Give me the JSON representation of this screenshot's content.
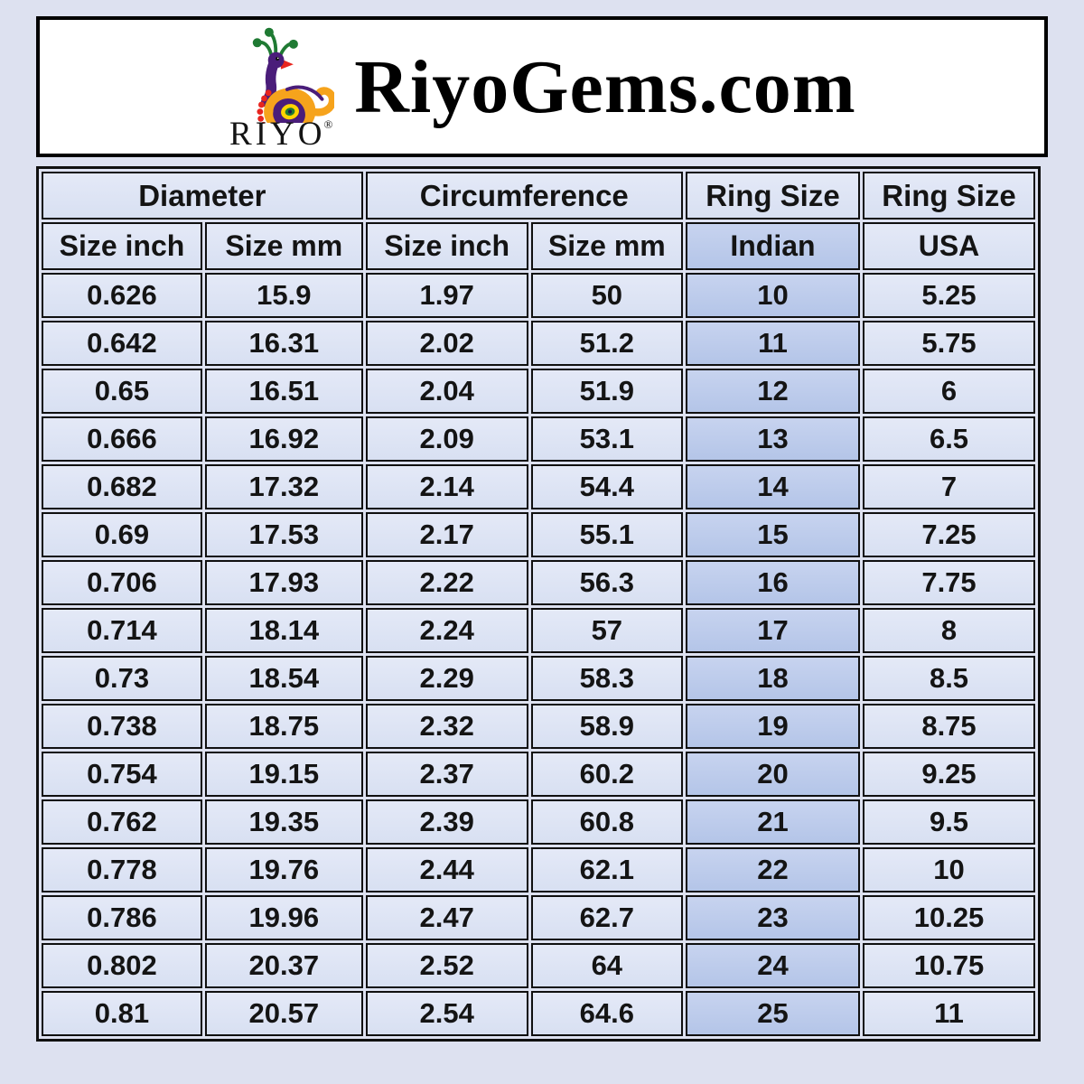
{
  "page": {
    "background": "#dde1f0"
  },
  "header": {
    "title": "RiyoGems.com",
    "logo": {
      "wordmark": "RIYO",
      "registered": "®",
      "icon": "peacock-paisley-logo",
      "brand_colors": {
        "purple": "#4a1d7a",
        "green": "#1f7a33",
        "orange": "#f6a31c",
        "yellow": "#ffd400",
        "red": "#e8251f"
      }
    }
  },
  "colors": {
    "page_bg": "#dde1f0",
    "cell_bg": "#dce3f3",
    "indian_column_bg": "#b9c8e8",
    "border": "#101010",
    "header_box_bg": "#ffffff",
    "text": "#141414"
  },
  "chart_data": {
    "type": "table",
    "highlight_column_index": 4,
    "column_groups": [
      {
        "label": "Diameter",
        "colspan": 2
      },
      {
        "label": "Circumference",
        "colspan": 2
      },
      {
        "label": "Ring Size",
        "colspan": 1
      },
      {
        "label": "Ring Size",
        "colspan": 1
      }
    ],
    "columns": [
      "Size inch",
      "Size mm",
      "Size inch",
      "Size mm",
      "Indian",
      "USA"
    ],
    "rows": [
      [
        "0.626",
        "15.9",
        "1.97",
        "50",
        "10",
        "5.25"
      ],
      [
        "0.642",
        "16.31",
        "2.02",
        "51.2",
        "11",
        "5.75"
      ],
      [
        "0.65",
        "16.51",
        "2.04",
        "51.9",
        "12",
        "6"
      ],
      [
        "0.666",
        "16.92",
        "2.09",
        "53.1",
        "13",
        "6.5"
      ],
      [
        "0.682",
        "17.32",
        "2.14",
        "54.4",
        "14",
        "7"
      ],
      [
        "0.69",
        "17.53",
        "2.17",
        "55.1",
        "15",
        "7.25"
      ],
      [
        "0.706",
        "17.93",
        "2.22",
        "56.3",
        "16",
        "7.75"
      ],
      [
        "0.714",
        "18.14",
        "2.24",
        "57",
        "17",
        "8"
      ],
      [
        "0.73",
        "18.54",
        "2.29",
        "58.3",
        "18",
        "8.5"
      ],
      [
        "0.738",
        "18.75",
        "2.32",
        "58.9",
        "19",
        "8.75"
      ],
      [
        "0.754",
        "19.15",
        "2.37",
        "60.2",
        "20",
        "9.25"
      ],
      [
        "0.762",
        "19.35",
        "2.39",
        "60.8",
        "21",
        "9.5"
      ],
      [
        "0.778",
        "19.76",
        "2.44",
        "62.1",
        "22",
        "10"
      ],
      [
        "0.786",
        "19.96",
        "2.47",
        "62.7",
        "23",
        "10.25"
      ],
      [
        "0.802",
        "20.37",
        "2.52",
        "64",
        "24",
        "10.75"
      ],
      [
        "0.81",
        "20.57",
        "2.54",
        "64.6",
        "25",
        "11"
      ]
    ]
  }
}
